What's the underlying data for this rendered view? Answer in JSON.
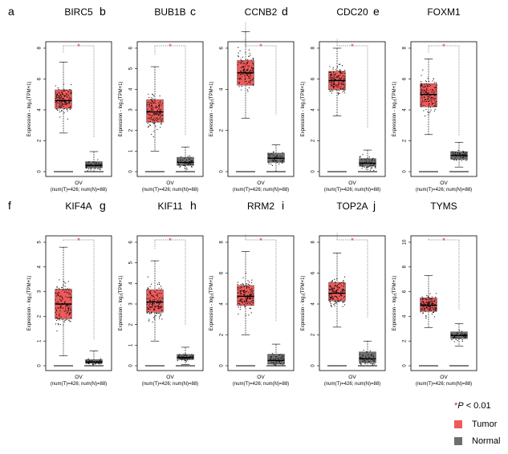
{
  "legend": {
    "star": "*",
    "p_symbol": "P",
    "threshold": "< 0.01",
    "tumor_label": "Tumor",
    "normal_label": "Normal",
    "tumor_color": "#f05a5a",
    "normal_color": "#6e6e6e"
  },
  "chart_data": [
    {
      "type": "box",
      "panel": "a",
      "title": "BIRC5",
      "ylabel": "Expression - log₂(TPM+1)",
      "xlabel": "OV",
      "xsublabel": "(num(T)=426; num(N)=88)",
      "ylim": [
        0,
        8
      ],
      "yticks": [
        0,
        2,
        4,
        6,
        8
      ],
      "significance": "*",
      "tumor": {
        "q1": 4.1,
        "median": 4.6,
        "q3": 5.3,
        "whisker_low": 2.5,
        "whisker_high": 7.1,
        "min": 1.2,
        "max": 7.6
      },
      "normal": {
        "q1": 0.25,
        "median": 0.4,
        "q3": 0.65,
        "whisker_low": 0.0,
        "whisker_high": 1.3,
        "min": 0.0,
        "max": 2.1
      }
    },
    {
      "type": "box",
      "panel": "b",
      "title": "BUB1B",
      "ylabel": "Expression - log₂(TPM+1)",
      "xlabel": "OV",
      "xsublabel": "(num(T)=426; num(N)=88)",
      "ylim": [
        0,
        6
      ],
      "yticks": [
        0,
        1,
        2,
        3,
        4,
        5,
        6
      ],
      "significance": "*",
      "tumor": {
        "q1": 2.4,
        "median": 2.9,
        "q3": 3.5,
        "whisker_low": 1.0,
        "whisker_high": 5.1,
        "min": 0.3,
        "max": 5.6
      },
      "normal": {
        "q1": 0.3,
        "median": 0.45,
        "q3": 0.7,
        "whisker_low": 0.0,
        "whisker_high": 1.2,
        "min": 0.0,
        "max": 1.7
      }
    },
    {
      "type": "box",
      "panel": "c",
      "title": "CCNB2",
      "ylabel": "Expression - log₂(TPM+1)",
      "xlabel": "OV",
      "xsublabel": "(num(T)=426; num(N)=88)",
      "ylim": [
        0,
        6
      ],
      "yticks": [
        0,
        2,
        4,
        6
      ],
      "significance": "*",
      "tumor": {
        "q1": 4.2,
        "median": 4.8,
        "q3": 5.4,
        "whisker_low": 2.6,
        "whisker_high": 6.8,
        "min": 1.3,
        "max": 7.2
      },
      "normal": {
        "q1": 0.45,
        "median": 0.65,
        "q3": 0.9,
        "whisker_low": 0.0,
        "whisker_high": 1.3,
        "min": 0.0,
        "max": 2.7
      }
    },
    {
      "type": "box",
      "panel": "d",
      "title": "CDC20",
      "ylabel": "Expression - log₂(TPM+1)",
      "xlabel": "OV",
      "xsublabel": "(num(T)=426; num(N)=88)",
      "ylim": [
        0,
        8
      ],
      "yticks": [
        0,
        2,
        4,
        6,
        8
      ],
      "significance": "*",
      "tumor": {
        "q1": 5.3,
        "median": 5.9,
        "q3": 6.5,
        "whisker_low": 3.6,
        "whisker_high": 8.0,
        "min": 2.1,
        "max": 8.5
      },
      "normal": {
        "q1": 0.35,
        "median": 0.55,
        "q3": 0.85,
        "whisker_low": 0.0,
        "whisker_high": 1.4,
        "min": 0.0,
        "max": 2.7
      }
    },
    {
      "type": "box",
      "panel": "e",
      "title": "FOXM1",
      "ylabel": "Expression - log₂(TPM+1)",
      "xlabel": "OV",
      "xsublabel": "(num(T)=426; num(N)=88)",
      "ylim": [
        0,
        8
      ],
      "yticks": [
        0,
        2,
        4,
        6,
        8
      ],
      "significance": "*",
      "tumor": {
        "q1": 4.2,
        "median": 5.0,
        "q3": 5.7,
        "whisker_low": 2.4,
        "whisker_high": 7.3,
        "min": 1.2,
        "max": 7.6
      },
      "normal": {
        "q1": 0.8,
        "median": 1.05,
        "q3": 1.3,
        "whisker_low": 0.3,
        "whisker_high": 1.9,
        "min": 0.2,
        "max": 2.2
      }
    },
    {
      "type": "box",
      "panel": "f",
      "title": "KIF4A",
      "ylabel": "Expression - log₂(TPM+1)",
      "xlabel": "OV",
      "xsublabel": "(num(T)=426; num(N)=88)",
      "ylim": [
        0,
        5
      ],
      "yticks": [
        0,
        1,
        2,
        3,
        4,
        5
      ],
      "significance": "*",
      "tumor": {
        "q1": 1.9,
        "median": 2.5,
        "q3": 3.1,
        "whisker_low": 0.4,
        "whisker_high": 4.8,
        "min": 0.1,
        "max": 5.0
      },
      "normal": {
        "q1": 0.1,
        "median": 0.15,
        "q3": 0.25,
        "whisker_low": 0.0,
        "whisker_high": 0.6,
        "min": 0.0,
        "max": 1.0
      }
    },
    {
      "type": "box",
      "panel": "g",
      "title": "KIF11",
      "ylabel": "Expression - log₂(TPM+1)",
      "xlabel": "OV",
      "xsublabel": "(num(T)=426; num(N)=88)",
      "ylim": [
        0,
        6
      ],
      "yticks": [
        0,
        1,
        2,
        3,
        4,
        5,
        6
      ],
      "significance": "*",
      "tumor": {
        "q1": 2.6,
        "median": 3.1,
        "q3": 3.7,
        "whisker_low": 1.2,
        "whisker_high": 5.1,
        "min": 0.6,
        "max": 5.6
      },
      "normal": {
        "q1": 0.3,
        "median": 0.4,
        "q3": 0.55,
        "whisker_low": 0.05,
        "whisker_high": 0.9,
        "min": 0.0,
        "max": 1.9
      }
    },
    {
      "type": "box",
      "panel": "h",
      "title": "RRM2",
      "ylabel": "Expression - log₂(TPM+1)",
      "xlabel": "OV",
      "xsublabel": "(num(T)=426; num(N)=88)",
      "ylim": [
        0,
        8
      ],
      "yticks": [
        0,
        2,
        4,
        6,
        8
      ],
      "significance": "*",
      "tumor": {
        "q1": 3.9,
        "median": 4.5,
        "q3": 5.2,
        "whisker_low": 2.0,
        "whisker_high": 7.4,
        "min": 0.8,
        "max": 8.4
      },
      "normal": {
        "q1": 0.1,
        "median": 0.35,
        "q3": 0.75,
        "whisker_low": 0.0,
        "whisker_high": 1.4,
        "min": 0.0,
        "max": 2.8
      }
    },
    {
      "type": "box",
      "panel": "i",
      "title": "TOP2A",
      "ylabel": "Expression - log₂(TPM+1)",
      "xlabel": "OV",
      "xsublabel": "(num(T)=426; num(N)=88)",
      "ylim": [
        0,
        8
      ],
      "yticks": [
        0,
        2,
        4,
        6,
        8
      ],
      "significance": "*",
      "tumor": {
        "q1": 4.2,
        "median": 4.7,
        "q3": 5.4,
        "whisker_low": 2.5,
        "whisker_high": 7.3,
        "min": 1.0,
        "max": 8.5
      },
      "normal": {
        "q1": 0.2,
        "median": 0.45,
        "q3": 0.9,
        "whisker_low": 0.0,
        "whisker_high": 1.6,
        "min": 0.0,
        "max": 3.0
      }
    },
    {
      "type": "box",
      "panel": "j",
      "title": "TYMS",
      "ylabel": "Expression - log₂(TPM+1)",
      "xlabel": "OV",
      "xsublabel": "(num(T)=426; num(N)=88)",
      "ylim": [
        0,
        10
      ],
      "yticks": [
        0,
        2,
        4,
        6,
        8,
        10
      ],
      "significance": "*",
      "tumor": {
        "q1": 4.4,
        "median": 4.9,
        "q3": 5.5,
        "whisker_low": 3.1,
        "whisker_high": 7.3,
        "min": 2.0,
        "max": 10.2
      },
      "normal": {
        "q1": 2.2,
        "median": 2.45,
        "q3": 2.75,
        "whisker_low": 1.6,
        "whisker_high": 3.4,
        "min": 1.2,
        "max": 4.4
      }
    }
  ]
}
